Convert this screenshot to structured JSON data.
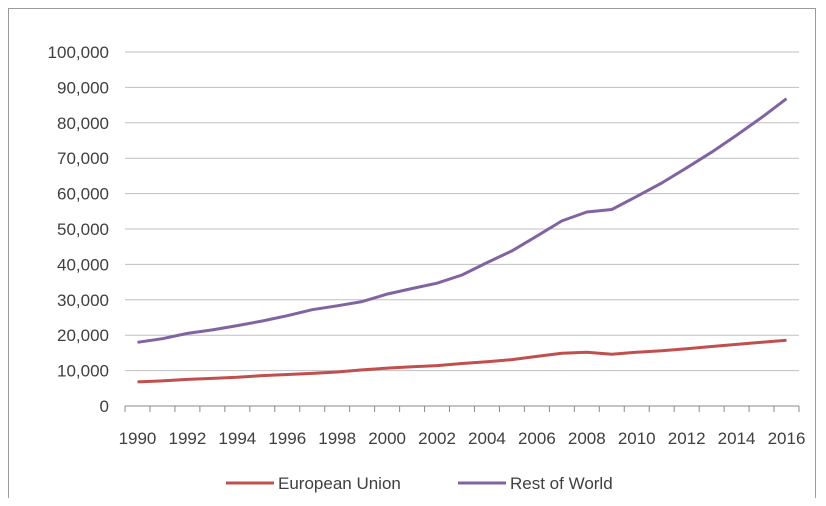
{
  "chart_data": {
    "type": "line",
    "title": "",
    "xlabel": "",
    "ylabel": "",
    "ylim": [
      0,
      100000
    ],
    "yticks": [
      "0",
      "10,000",
      "20,000",
      "30,000",
      "40,000",
      "50,000",
      "60,000",
      "70,000",
      "80,000",
      "90,000",
      "100,000"
    ],
    "x": [
      1990,
      1991,
      1992,
      1993,
      1994,
      1995,
      1996,
      1997,
      1998,
      1999,
      2000,
      2001,
      2002,
      2003,
      2004,
      2005,
      2006,
      2007,
      2008,
      2009,
      2010,
      2011,
      2012,
      2013,
      2014,
      2015,
      2016
    ],
    "xtick_labels": [
      "1990",
      "1992",
      "1994",
      "1996",
      "1998",
      "2000",
      "2002",
      "2004",
      "2006",
      "2008",
      "2010",
      "2012",
      "2014",
      "2016"
    ],
    "series": [
      {
        "name": "European Union",
        "color": "#c0504d",
        "values": [
          6800,
          7100,
          7500,
          7800,
          8100,
          8600,
          8900,
          9200,
          9600,
          10200,
          10700,
          11100,
          11400,
          12000,
          12500,
          13100,
          14000,
          14900,
          15200,
          14600,
          15200,
          15600,
          16200,
          16800,
          17400,
          18000,
          18600
        ]
      },
      {
        "name": "Rest of World",
        "color": "#8064a2",
        "values": [
          18000,
          19000,
          20500,
          21500,
          22700,
          24000,
          25500,
          27200,
          28300,
          29500,
          31600,
          33200,
          34700,
          37000,
          40500,
          43800,
          48000,
          52300,
          54800,
          55500,
          59200,
          63000,
          67300,
          71700,
          76500,
          81500,
          86800
        ]
      }
    ],
    "grid": true,
    "legend_position": "bottom"
  }
}
